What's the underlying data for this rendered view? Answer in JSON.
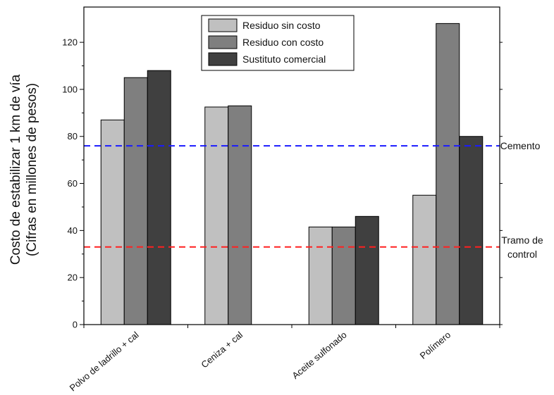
{
  "chart_data": {
    "type": "bar",
    "title": "",
    "ylabel_lines": [
      "Costo de estabilizar 1 km de vía",
      "(Cifras en millones de pesos)"
    ],
    "xlabel": "",
    "categories": [
      "Polvo de ladrillo + cal",
      "Ceniza + cal",
      "Aceite sulfonado",
      "Polímero"
    ],
    "series": [
      {
        "name": "Residuo sin costo",
        "color": "#c0c0c0",
        "values": [
          87,
          92.5,
          41.5,
          55
        ]
      },
      {
        "name": "Residuo con costo",
        "color": "#7f7f7f",
        "values": [
          105,
          93,
          41.5,
          128
        ]
      },
      {
        "name": "Sustituto comercial",
        "color": "#404040",
        "values": [
          108,
          null,
          46,
          80
        ]
      }
    ],
    "ylim": [
      0,
      135
    ],
    "yticks": [
      0,
      20,
      40,
      60,
      80,
      100,
      120
    ],
    "reference_lines": [
      {
        "label_lines": [
          "Cemento"
        ],
        "value": 76,
        "color": "#1a1aff",
        "style": "dashed"
      },
      {
        "label_lines": [
          "Tramo de",
          "control"
        ],
        "value": 33,
        "color": "#ff2020",
        "style": "dashed"
      }
    ],
    "legend_position": "top-center",
    "grid": false
  }
}
